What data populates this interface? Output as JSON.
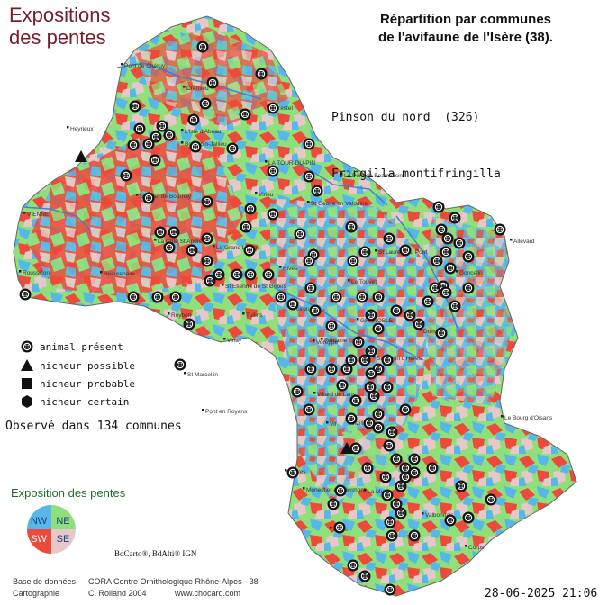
{
  "header": {
    "left_title_line1": "Expositions",
    "left_title_line2": "des pentes",
    "right_title_line1": "Répartition par communes",
    "right_title_line2": "de l'avifaune de l'Isère (38).",
    "species_common": "Pinson du nord  (326)",
    "species_latin": "Fringilla montifringilla"
  },
  "legend": {
    "items": [
      {
        "symbol": "dotted-circle",
        "label": "animal présent"
      },
      {
        "symbol": "triangle",
        "label": "nicheur possible"
      },
      {
        "symbol": "square",
        "label": "nicheur probable"
      },
      {
        "symbol": "hexagon",
        "label": "nicheur certain"
      }
    ],
    "observed": "Observé dans 134 communes"
  },
  "exposition": {
    "title": "Exposition des pentes",
    "quadrants": [
      {
        "label": "NW",
        "color": "#55b8e8"
      },
      {
        "label": "NE",
        "color": "#8fe07a"
      },
      {
        "label": "SW",
        "color": "#ee4a3c"
      },
      {
        "label": "SE",
        "color": "#e6c8c8"
      }
    ]
  },
  "credits": {
    "bd_line": "BdCarto®, BdAlti® IGN",
    "row1_label": "Base de données",
    "row1_value": "CORA Centre Ornithologique Rhône-Alpes - 38",
    "row2_label": "Cartographie",
    "row2_value": "C. Rolland 2004",
    "row2_url": "www.chocard.com",
    "date": "28-06-2025 21:06"
  },
  "towns": [
    "Pont de Chéruy",
    "Crémieu",
    "Morestel",
    "L'Isle d'Abeau",
    "Bourgoin-Jallieu",
    "Heyrieux",
    "LA TOUR-DU-PIN",
    "Le Pont de Beauvoisin",
    "VIENNE",
    "St Jean de Bournay",
    "Virieu",
    "St Geoire en Valdaine",
    "La Côte St André",
    "Le Grand Lemps",
    "Roussillon",
    "Beaurepaire",
    "St Etienne de St Geoirs",
    "Rives",
    "Voiron",
    "St Laurent du Pont",
    "Le Touvet",
    "Allevard",
    "Goncelin",
    "Roybon",
    "Tullins",
    "Vinay",
    "Voreppe",
    "Fontaine",
    "GRENOBLE",
    "St Martin d'Hères",
    "Domène",
    "St Marcellin",
    "Villard de Lans",
    "Pont en Royans",
    "Vizille",
    "Le Bourg d'Oisans",
    "Vif",
    "Monestier de Clermont",
    "La Mure",
    "Valbonnais",
    "Mens",
    "Corps",
    "Clelles"
  ],
  "colors": {
    "NW": "#55b8e8",
    "NE": "#8fe07a",
    "SW": "#ee4a3c",
    "SE": "#e6c8c8",
    "title_red": "#7a1a2a",
    "legend_green": "#1b6e2b"
  },
  "markers": {
    "present_count": 134,
    "possible_count": 2,
    "probable_count": 0,
    "certain_count": 0
  }
}
